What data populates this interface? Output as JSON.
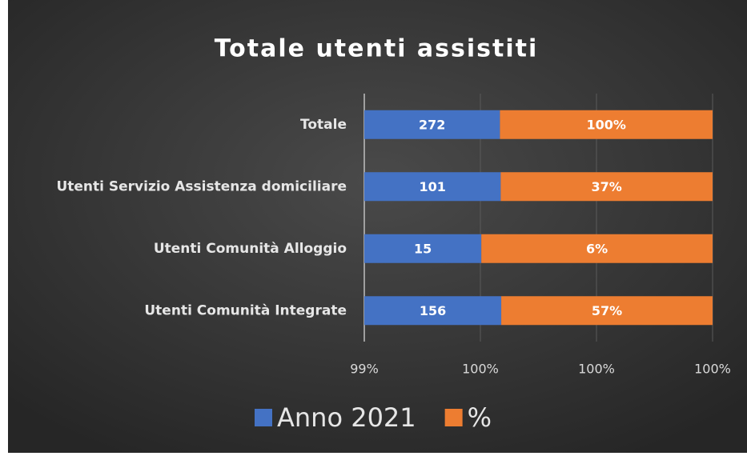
{
  "chart_data": {
    "type": "bar",
    "orientation": "horizontal",
    "stacking": "percent",
    "title": "Totale utenti assistiti",
    "categories": [
      "Totale",
      "Utenti Servizio Assistenza domiciliare",
      "Utenti Comunità Alloggio",
      "Utenti Comunità Integrate"
    ],
    "series": [
      {
        "name": "Anno 2021",
        "color": "#4472c4",
        "values": [
          272,
          101,
          15,
          156
        ]
      },
      {
        "name": "%",
        "color": "#ed7d31",
        "values": [
          1,
          0.37,
          0.06,
          0.57
        ],
        "value_labels": [
          "100%",
          "37%",
          "6%",
          "57%"
        ]
      }
    ],
    "xlim": [
      99.4,
      100
    ],
    "xticks": [
      {
        "value": 99.4,
        "label": "99%"
      },
      {
        "value": 99.6,
        "label": "100%"
      },
      {
        "value": 99.8,
        "label": "100%"
      },
      {
        "value": 100,
        "label": "100%"
      }
    ],
    "grid": true,
    "legend": "bottom"
  }
}
